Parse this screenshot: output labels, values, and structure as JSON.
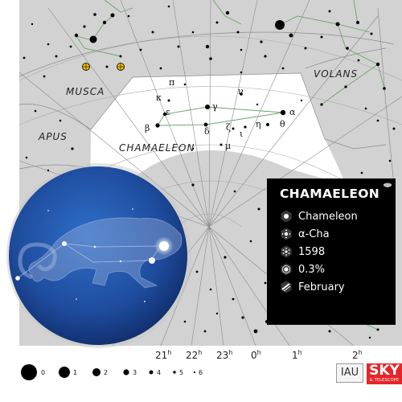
{
  "constellations": {
    "musca": "MUSCA",
    "volans": "VOLANS",
    "apus": "APUS",
    "chamaeleon": "CHAMAELEON"
  },
  "star_labels": {
    "pi": "π",
    "kappa": "κ",
    "nu": "ν",
    "epsilon": "ε",
    "gamma": "γ",
    "alpha": "α",
    "beta": "β",
    "delta": "δ",
    "zeta": "ζ",
    "iota": "ι",
    "eta": "η",
    "theta": "θ",
    "mu": "μ"
  },
  "ra_ticks": [
    {
      "h": "21",
      "u": "h"
    },
    {
      "h": "22",
      "u": "h"
    },
    {
      "h": "23",
      "u": "h"
    },
    {
      "h": "0",
      "u": "h"
    },
    {
      "h": "1",
      "u": "h"
    },
    {
      "h": "2",
      "u": "h"
    }
  ],
  "magnitude_legend": [
    "0",
    "1",
    "2",
    "3",
    "4",
    "5",
    "6"
  ],
  "info": {
    "title": "CHAMAELEON",
    "rows": [
      {
        "icon": "name-icon",
        "text": "Chameleon"
      },
      {
        "icon": "brightest-star-icon",
        "text": "α-Cha"
      },
      {
        "icon": "area-icon",
        "text": "1598"
      },
      {
        "icon": "sky-percentage-icon",
        "text": "0.3%"
      },
      {
        "icon": "best-month-icon",
        "text": "February"
      }
    ]
  },
  "logos": {
    "iau": "IAU",
    "sky": "SKY",
    "sky_sub": "& TELESCOPE"
  },
  "colors": {
    "map_background": "#d2d2d2",
    "highlight": "#ffffff",
    "grid": "#8a8a8a",
    "stick_figure": "#6aa56a",
    "badge_blue": "#1f4ea0",
    "info_background": "#000000"
  }
}
